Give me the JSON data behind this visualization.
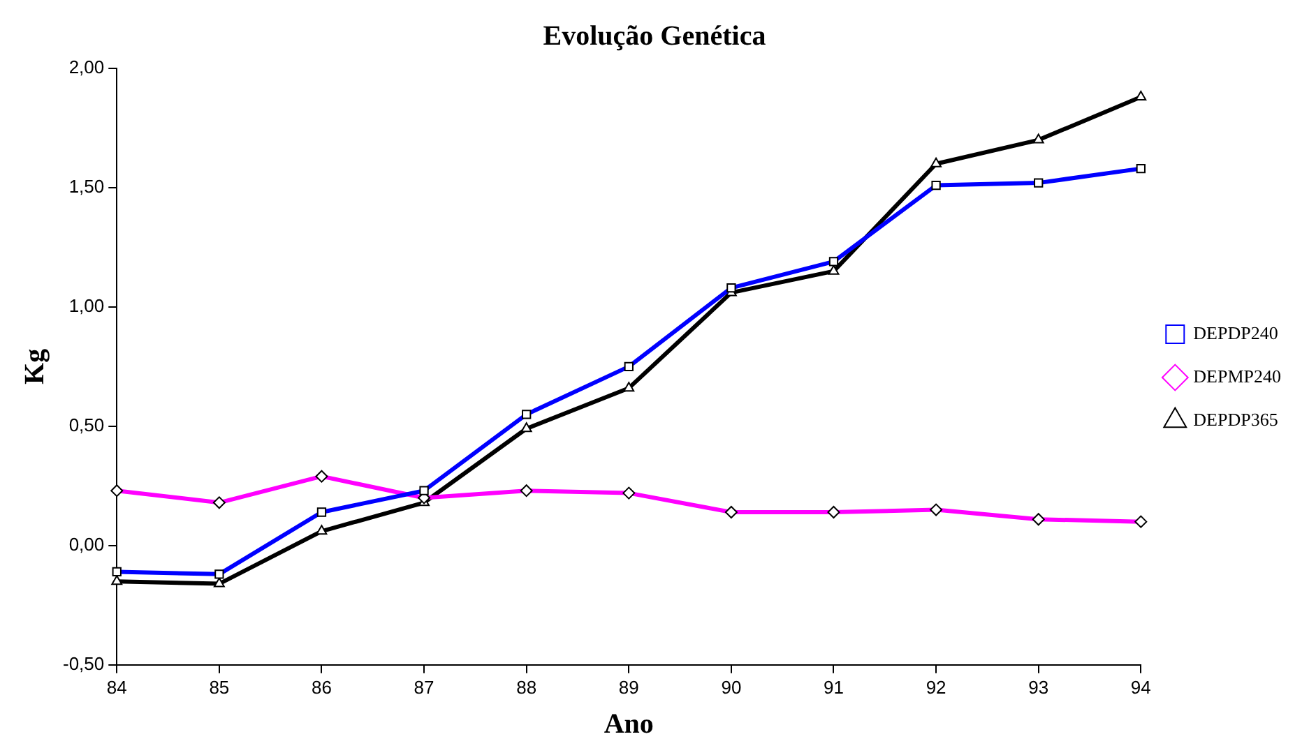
{
  "chart_data": {
    "type": "line",
    "title": "Evolução Genética",
    "xlabel": "Ano",
    "ylabel": "Kg",
    "x": [
      84,
      85,
      86,
      87,
      88,
      89,
      90,
      91,
      92,
      93,
      94
    ],
    "xlim": [
      84,
      94
    ],
    "xticks": [
      84,
      85,
      86,
      87,
      88,
      89,
      90,
      91,
      92,
      93,
      94
    ],
    "ylim": [
      -0.5,
      2
    ],
    "yticks": [
      {
        "value": -0.5,
        "label": "-0,50"
      },
      {
        "value": 0,
        "label": "0,00"
      },
      {
        "value": 0.5,
        "label": "0,50"
      },
      {
        "value": 1,
        "label": "1,00"
      },
      {
        "value": 1.5,
        "label": "1,50"
      },
      {
        "value": 2,
        "label": "2,00"
      }
    ],
    "grid": false,
    "legend": "right",
    "line_style": "solid",
    "series": [
      {
        "name": "DEPDP240",
        "color": "#0000ff",
        "marker": "square",
        "values": [
          -0.11,
          -0.12,
          0.14,
          0.23,
          0.55,
          0.75,
          1.08,
          1.19,
          1.51,
          1.52,
          1.58
        ]
      },
      {
        "name": "DEPMP240",
        "color": "#ff00ff",
        "marker": "diamond",
        "values": [
          0.23,
          0.18,
          0.29,
          0.2,
          0.23,
          0.22,
          0.14,
          0.14,
          0.15,
          0.11,
          0.1
        ]
      },
      {
        "name": "DEPDP365",
        "color": "#000000",
        "marker": "triangle",
        "values": [
          -0.15,
          -0.16,
          0.06,
          0.18,
          0.49,
          0.66,
          1.06,
          1.15,
          1.6,
          1.7,
          1.88
        ]
      }
    ]
  }
}
